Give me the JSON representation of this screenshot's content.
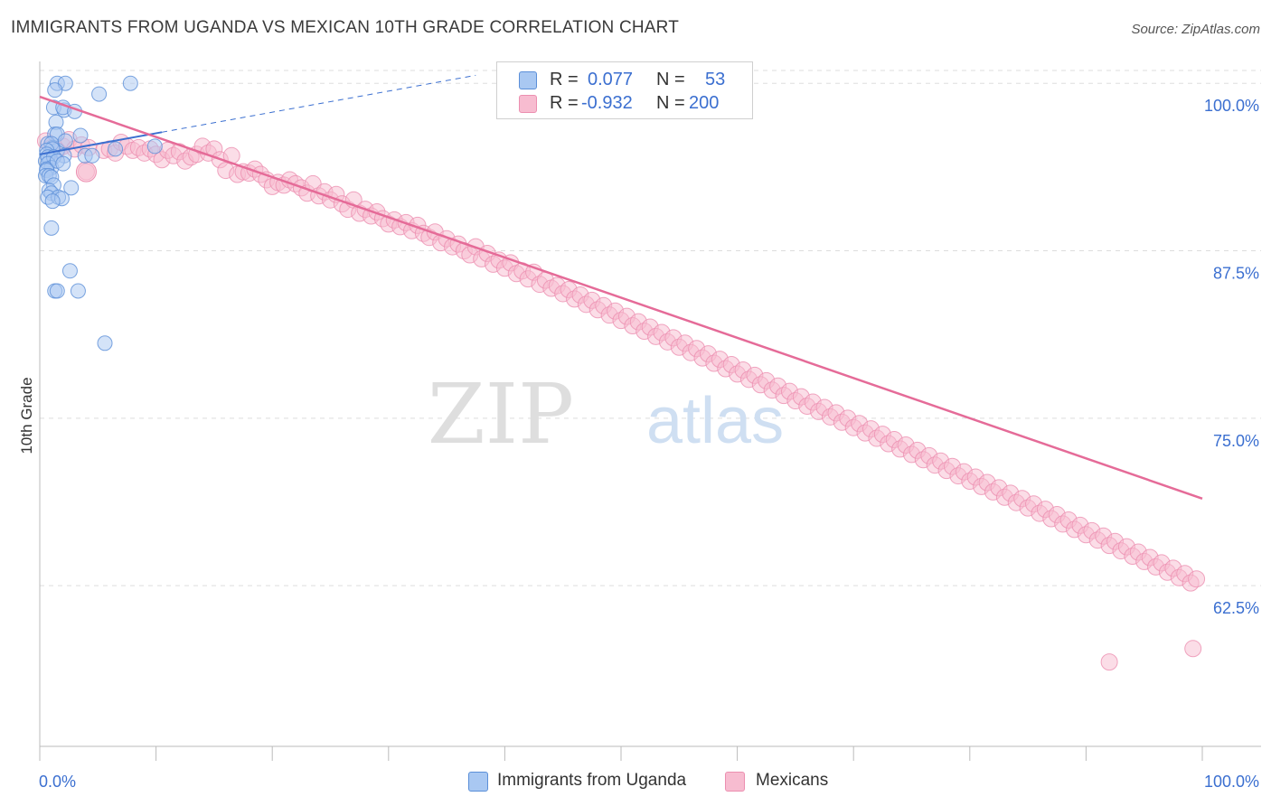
{
  "title": "IMMIGRANTS FROM UGANDA VS MEXICAN 10TH GRADE CORRELATION CHART",
  "source": "Source: ZipAtlas.com",
  "watermark": {
    "part1": "ZIP",
    "part2": "atlas"
  },
  "legend_top": {
    "r_label": "R =",
    "n_label": "N =",
    "rows": [
      {
        "series": "Immigrants from Uganda",
        "r_value": "0.077",
        "n_value": "53"
      },
      {
        "series": "Mexicans",
        "r_value": "-0.932",
        "n_value": "200"
      }
    ]
  },
  "legend_bottom": {
    "items": [
      "Immigrants from Uganda",
      "Mexicans"
    ]
  },
  "colors": {
    "uganda_fill": "#a9c8f2",
    "uganda_stroke": "#5b8fd8",
    "uganda_line": "#3b6fd0",
    "mexican_fill": "#f7bcd0",
    "mexican_stroke": "#ec8fb0",
    "mexican_line": "#e56b98",
    "axis_label": "#3b6fd0",
    "grid": "#dddddd"
  },
  "chart_data": {
    "type": "scatter",
    "title": "IMMIGRANTS FROM UGANDA VS MEXICAN 10TH GRADE CORRELATION CHART",
    "xlabel": "",
    "ylabel": "10th Grade",
    "xlim": [
      0,
      100
    ],
    "ylim": [
      50.5,
      101.5
    ],
    "x_tick_labels": [
      "0.0%",
      "100.0%"
    ],
    "y_ticks": [
      62.5,
      75.0,
      87.5,
      100.0
    ],
    "y_tick_labels": [
      "62.5%",
      "75.0%",
      "87.5%",
      "100.0%"
    ],
    "grid": true,
    "series": [
      {
        "name": "Immigrants from Uganda",
        "trend": {
          "x": [
            0,
            37.5
          ],
          "y": [
            94.7,
            100.6
          ]
        },
        "points": [
          [
            1.5,
            100.0
          ],
          [
            2.2,
            100.0
          ],
          [
            7.8,
            100.0
          ],
          [
            1.3,
            99.5
          ],
          [
            5.1,
            99.2
          ],
          [
            1.2,
            98.2
          ],
          [
            2.1,
            98.0
          ],
          [
            2.0,
            98.2
          ],
          [
            3.0,
            97.9
          ],
          [
            1.4,
            97.1
          ],
          [
            1.3,
            96.2
          ],
          [
            1.5,
            96.2
          ],
          [
            0.7,
            95.5
          ],
          [
            1.1,
            95.2
          ],
          [
            1.5,
            95.0
          ],
          [
            3.5,
            96.1
          ],
          [
            2.2,
            95.7
          ],
          [
            1.0,
            95.5
          ],
          [
            1.1,
            95.1
          ],
          [
            0.6,
            95.0
          ],
          [
            0.6,
            94.7
          ],
          [
            0.9,
            94.3
          ],
          [
            2.1,
            94.6
          ],
          [
            6.5,
            95.1
          ],
          [
            9.9,
            95.3
          ],
          [
            3.9,
            94.6
          ],
          [
            4.5,
            94.6
          ],
          [
            0.5,
            94.2
          ],
          [
            0.7,
            94.5
          ],
          [
            1.2,
            94.5
          ],
          [
            0.7,
            94.0
          ],
          [
            1.0,
            93.7
          ],
          [
            0.6,
            93.6
          ],
          [
            1.5,
            94.2
          ],
          [
            2.0,
            94.0
          ],
          [
            0.6,
            93.5
          ],
          [
            0.5,
            93.1
          ],
          [
            0.8,
            93.1
          ],
          [
            1.0,
            93.0
          ],
          [
            1.2,
            92.4
          ],
          [
            2.7,
            92.2
          ],
          [
            0.8,
            92.0
          ],
          [
            1.0,
            91.8
          ],
          [
            0.7,
            91.5
          ],
          [
            1.6,
            91.5
          ],
          [
            1.9,
            91.4
          ],
          [
            1.1,
            91.2
          ],
          [
            1.0,
            89.2
          ],
          [
            2.6,
            86.0
          ],
          [
            1.3,
            84.5
          ],
          [
            1.5,
            84.5
          ],
          [
            3.3,
            84.5
          ],
          [
            5.6,
            80.6
          ]
        ]
      },
      {
        "name": "Mexicans",
        "trend": {
          "x": [
            0,
            100
          ],
          "y": [
            99.0,
            69.0
          ]
        },
        "points": [
          [
            4.0,
            93.4
          ],
          [
            0.5,
            95.7
          ],
          [
            1.0,
            95.2
          ],
          [
            1.5,
            95.0
          ],
          [
            2.0,
            95.3
          ],
          [
            2.5,
            95.8
          ],
          [
            3.0,
            95.1
          ],
          [
            3.6,
            95.4
          ],
          [
            4.2,
            95.2
          ],
          [
            5.5,
            95.0
          ],
          [
            6.0,
            95.1
          ],
          [
            6.5,
            94.8
          ],
          [
            7.0,
            95.6
          ],
          [
            7.5,
            95.3
          ],
          [
            8.0,
            95.0
          ],
          [
            8.5,
            95.2
          ],
          [
            9.0,
            94.8
          ],
          [
            9.5,
            95.1
          ],
          [
            10.0,
            94.7
          ],
          [
            10.5,
            94.3
          ],
          [
            11.0,
            95.0
          ],
          [
            11.5,
            94.6
          ],
          [
            12.0,
            94.9
          ],
          [
            12.5,
            94.2
          ],
          [
            13.0,
            94.5
          ],
          [
            13.5,
            94.7
          ],
          [
            14.0,
            95.3
          ],
          [
            14.5,
            94.8
          ],
          [
            15.0,
            95.1
          ],
          [
            15.5,
            94.3
          ],
          [
            16.0,
            93.5
          ],
          [
            16.5,
            94.6
          ],
          [
            17.0,
            93.2
          ],
          [
            17.5,
            93.4
          ],
          [
            18.0,
            93.3
          ],
          [
            18.5,
            93.6
          ],
          [
            19.0,
            93.2
          ],
          [
            19.5,
            92.8
          ],
          [
            20.0,
            92.3
          ],
          [
            20.5,
            92.6
          ],
          [
            21.0,
            92.4
          ],
          [
            21.5,
            92.8
          ],
          [
            22.0,
            92.5
          ],
          [
            22.5,
            92.2
          ],
          [
            23.0,
            91.8
          ],
          [
            23.5,
            92.5
          ],
          [
            24.0,
            91.6
          ],
          [
            24.5,
            91.9
          ],
          [
            25.0,
            91.3
          ],
          [
            25.5,
            91.7
          ],
          [
            26.0,
            91.0
          ],
          [
            26.5,
            90.6
          ],
          [
            27.0,
            91.3
          ],
          [
            27.5,
            90.3
          ],
          [
            28.0,
            90.6
          ],
          [
            28.5,
            90.1
          ],
          [
            29.0,
            90.4
          ],
          [
            29.5,
            89.9
          ],
          [
            30.0,
            89.5
          ],
          [
            30.5,
            89.8
          ],
          [
            31.0,
            89.3
          ],
          [
            31.5,
            89.6
          ],
          [
            32.0,
            89.0
          ],
          [
            32.5,
            89.4
          ],
          [
            33.0,
            88.8
          ],
          [
            33.5,
            88.5
          ],
          [
            34.0,
            88.9
          ],
          [
            34.5,
            88.1
          ],
          [
            35.0,
            88.4
          ],
          [
            35.5,
            87.8
          ],
          [
            36.0,
            88.0
          ],
          [
            36.5,
            87.5
          ],
          [
            37.0,
            87.2
          ],
          [
            37.5,
            87.8
          ],
          [
            38.0,
            86.9
          ],
          [
            38.5,
            87.3
          ],
          [
            39.0,
            86.5
          ],
          [
            39.5,
            86.8
          ],
          [
            40.0,
            86.2
          ],
          [
            40.5,
            86.6
          ],
          [
            41.0,
            85.8
          ],
          [
            41.5,
            86.0
          ],
          [
            42.0,
            85.4
          ],
          [
            42.5,
            85.9
          ],
          [
            43.0,
            85.0
          ],
          [
            43.5,
            85.3
          ],
          [
            44.0,
            84.7
          ],
          [
            44.5,
            84.9
          ],
          [
            45.0,
            84.3
          ],
          [
            45.5,
            84.6
          ],
          [
            46.0,
            83.9
          ],
          [
            46.5,
            84.2
          ],
          [
            47.0,
            83.5
          ],
          [
            47.5,
            83.8
          ],
          [
            48.0,
            83.1
          ],
          [
            48.5,
            83.4
          ],
          [
            49.0,
            82.7
          ],
          [
            49.5,
            83.0
          ],
          [
            50.0,
            82.3
          ],
          [
            50.5,
            82.6
          ],
          [
            51.0,
            81.9
          ],
          [
            51.5,
            82.2
          ],
          [
            52.0,
            81.5
          ],
          [
            52.5,
            81.8
          ],
          [
            53.0,
            81.1
          ],
          [
            53.5,
            81.4
          ],
          [
            54.0,
            80.7
          ],
          [
            54.5,
            81.0
          ],
          [
            55.0,
            80.3
          ],
          [
            55.5,
            80.6
          ],
          [
            56.0,
            79.9
          ],
          [
            56.5,
            80.2
          ],
          [
            57.0,
            79.5
          ],
          [
            57.5,
            79.8
          ],
          [
            58.0,
            79.1
          ],
          [
            58.5,
            79.4
          ],
          [
            59.0,
            78.7
          ],
          [
            59.5,
            79.0
          ],
          [
            60.0,
            78.3
          ],
          [
            60.5,
            78.6
          ],
          [
            61.0,
            77.9
          ],
          [
            61.5,
            78.2
          ],
          [
            62.0,
            77.5
          ],
          [
            62.5,
            77.8
          ],
          [
            63.0,
            77.1
          ],
          [
            63.5,
            77.4
          ],
          [
            64.0,
            76.7
          ],
          [
            64.5,
            77.0
          ],
          [
            65.0,
            76.3
          ],
          [
            65.5,
            76.6
          ],
          [
            66.0,
            75.9
          ],
          [
            66.5,
            76.2
          ],
          [
            67.0,
            75.5
          ],
          [
            67.5,
            75.8
          ],
          [
            68.0,
            75.1
          ],
          [
            68.5,
            75.4
          ],
          [
            69.0,
            74.7
          ],
          [
            69.5,
            75.0
          ],
          [
            70.0,
            74.3
          ],
          [
            70.5,
            74.6
          ],
          [
            71.0,
            73.9
          ],
          [
            71.5,
            74.2
          ],
          [
            72.0,
            73.5
          ],
          [
            72.5,
            73.8
          ],
          [
            73.0,
            73.1
          ],
          [
            73.5,
            73.4
          ],
          [
            74.0,
            72.7
          ],
          [
            74.5,
            73.0
          ],
          [
            75.0,
            72.3
          ],
          [
            75.5,
            72.6
          ],
          [
            76.0,
            71.9
          ],
          [
            76.5,
            72.2
          ],
          [
            77.0,
            71.5
          ],
          [
            77.5,
            71.8
          ],
          [
            78.0,
            71.1
          ],
          [
            78.5,
            71.4
          ],
          [
            79.0,
            70.7
          ],
          [
            79.5,
            71.0
          ],
          [
            80.0,
            70.3
          ],
          [
            80.5,
            70.6
          ],
          [
            81.0,
            69.9
          ],
          [
            81.5,
            70.2
          ],
          [
            82.0,
            69.5
          ],
          [
            82.5,
            69.8
          ],
          [
            83.0,
            69.1
          ],
          [
            83.5,
            69.4
          ],
          [
            84.0,
            68.7
          ],
          [
            84.5,
            69.0
          ],
          [
            85.0,
            68.3
          ],
          [
            85.5,
            68.6
          ],
          [
            86.0,
            67.9
          ],
          [
            86.5,
            68.2
          ],
          [
            87.0,
            67.5
          ],
          [
            87.5,
            67.8
          ],
          [
            88.0,
            67.1
          ],
          [
            88.5,
            67.4
          ],
          [
            89.0,
            66.7
          ],
          [
            89.5,
            67.0
          ],
          [
            90.0,
            66.3
          ],
          [
            90.5,
            66.6
          ],
          [
            91.0,
            65.9
          ],
          [
            91.5,
            66.2
          ],
          [
            92.0,
            65.5
          ],
          [
            92.5,
            65.8
          ],
          [
            93.0,
            65.1
          ],
          [
            93.5,
            65.4
          ],
          [
            94.0,
            64.7
          ],
          [
            94.5,
            65.0
          ],
          [
            95.0,
            64.3
          ],
          [
            95.5,
            64.6
          ],
          [
            96.0,
            63.9
          ],
          [
            96.5,
            64.2
          ],
          [
            97.0,
            63.5
          ],
          [
            97.5,
            63.8
          ],
          [
            98.0,
            63.1
          ],
          [
            98.5,
            63.4
          ],
          [
            99.0,
            62.7
          ],
          [
            99.5,
            63.0
          ],
          [
            92.0,
            56.8
          ],
          [
            99.2,
            57.8
          ]
        ]
      }
    ]
  }
}
